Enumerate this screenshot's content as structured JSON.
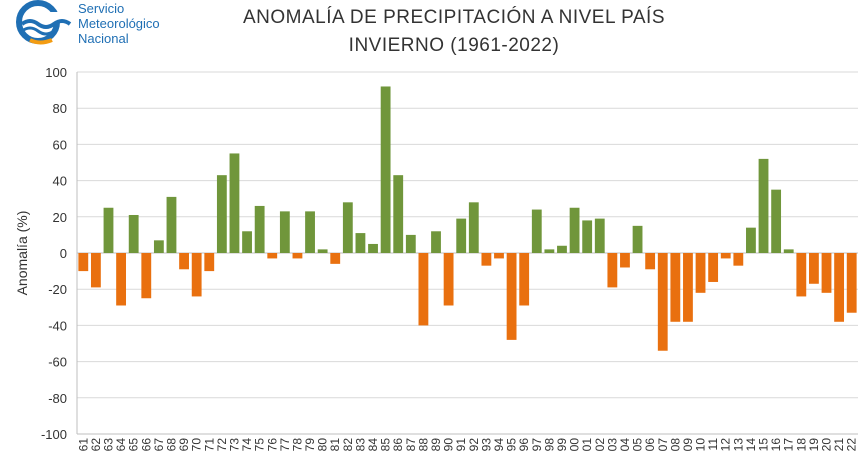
{
  "logo": {
    "name": "smn-logo",
    "lines": [
      "Servicio",
      "Meteorológico",
      "Nacional"
    ]
  },
  "colors": {
    "positive": "#70963b",
    "negative": "#e9700f",
    "grid": "#d9d9d9",
    "logo_blue": "#1f6fb4",
    "logo_orange": "#f39c12"
  },
  "chart_data": {
    "type": "bar",
    "title": "ANOMALÍA DE PRECIPITACIÓN A NIVEL PAÍS",
    "subtitle": "INVIERNO (1961-2022)",
    "xlabel": "",
    "ylabel": "Anomalía (%)",
    "ylim": [
      -100,
      100
    ],
    "yticks": [
      100,
      80,
      60,
      40,
      20,
      0,
      -20,
      -40,
      -60,
      -80,
      -100
    ],
    "grid": true,
    "categories": [
      "61",
      "62",
      "63",
      "64",
      "65",
      "66",
      "67",
      "68",
      "69",
      "70",
      "71",
      "72",
      "73",
      "74",
      "75",
      "76",
      "77",
      "78",
      "79",
      "80",
      "81",
      "82",
      "83",
      "84",
      "85",
      "86",
      "87",
      "88",
      "89",
      "90",
      "91",
      "92",
      "93",
      "94",
      "95",
      "96",
      "97",
      "98",
      "99",
      "00",
      "01",
      "02",
      "03",
      "04",
      "05",
      "06",
      "07",
      "08",
      "09",
      "10",
      "11",
      "12",
      "13",
      "14",
      "15",
      "16",
      "17",
      "18",
      "19",
      "20",
      "21",
      "22"
    ],
    "values": [
      -10,
      -19,
      25,
      -29,
      21,
      -25,
      7,
      31,
      -9,
      -24,
      -10,
      43,
      55,
      12,
      26,
      -3,
      23,
      -3,
      23,
      2,
      -6,
      28,
      11,
      5,
      92,
      43,
      10,
      -40,
      12,
      -29,
      19,
      28,
      -7,
      -3,
      -48,
      -29,
      24,
      2,
      4,
      25,
      18,
      19,
      -19,
      -8,
      15,
      -9,
      -54,
      -38,
      -38,
      -22,
      -16,
      -3,
      -7,
      14,
      52,
      35,
      2,
      -24,
      -17,
      -22,
      -38,
      -33
    ]
  }
}
